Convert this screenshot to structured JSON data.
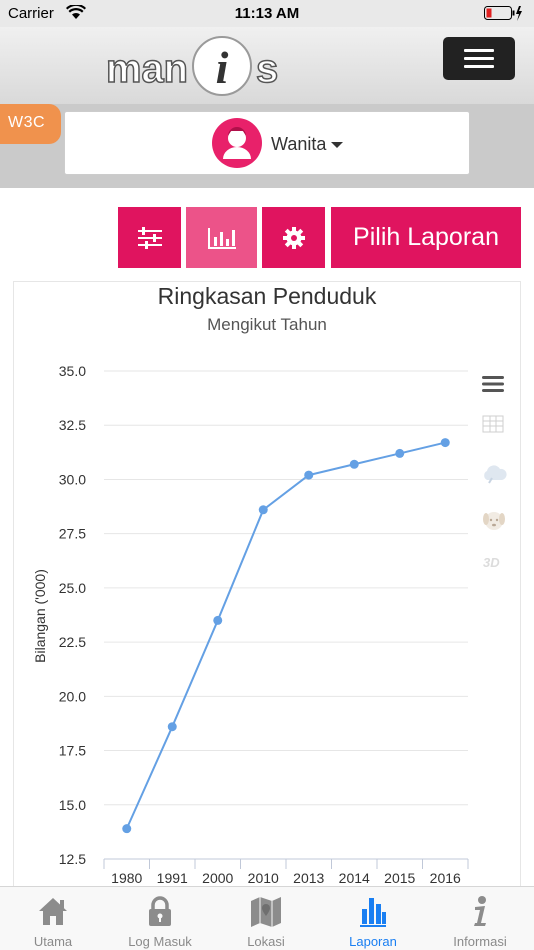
{
  "status_bar": {
    "carrier": "Carrier",
    "time": "11:13 AM",
    "wifi_icon": "wifi-icon",
    "battery_icon": "battery-low-icon",
    "charging_icon": "charging-bolt-icon"
  },
  "header": {
    "logo_text": "manis",
    "menu_icon": "hamburger-menu-icon"
  },
  "filter_bar": {
    "w3c_label": "W3C",
    "gender_icon": "female-avatar-icon",
    "gender_label": "Wanita"
  },
  "toolbar": {
    "filter_icon": "sliders-icon",
    "chart_icon": "bar-chart-icon",
    "settings_icon": "gear-icon",
    "report_label": "Pilih Laporan"
  },
  "chart_side_icons": [
    "list-menu-icon",
    "table-icon",
    "cloud-icon",
    "dog-face-icon",
    "3d-icon"
  ],
  "chart_side_icon_3d_label": "3D",
  "chart_data": {
    "type": "line",
    "title": "Ringkasan Penduduk",
    "subtitle": "Mengikut Tahun",
    "ylabel": "Bilangan ('000)",
    "xlabel": "",
    "categories": [
      "1980",
      "1991",
      "2000",
      "2010",
      "2013",
      "2014",
      "2015",
      "2016"
    ],
    "series": [
      {
        "values": [
          13.9,
          18.6,
          23.5,
          28.6,
          30.2,
          30.7,
          31.2,
          31.7
        ],
        "color": "#64a0e4"
      }
    ],
    "yticks": [
      "35.0",
      "32.5",
      "30.0",
      "27.5",
      "25.0",
      "22.5",
      "20.0",
      "17.5",
      "15.0",
      "12.5"
    ],
    "ylim": [
      12.5,
      35.0
    ],
    "grid": "horizontal"
  },
  "tabs": [
    {
      "label": "Utama",
      "icon": "home-icon"
    },
    {
      "label": "Log Masuk",
      "icon": "lock-icon"
    },
    {
      "label": "Lokasi",
      "icon": "map-icon"
    },
    {
      "label": "Laporan",
      "icon": "bar-chart-icon",
      "active": true
    },
    {
      "label": "Informasi",
      "icon": "info-icon"
    }
  ],
  "colors": {
    "accent": "#e0145f",
    "accent_light": "#ec5389",
    "line": "#64a0e4",
    "tab_active": "#1a7ff2"
  }
}
